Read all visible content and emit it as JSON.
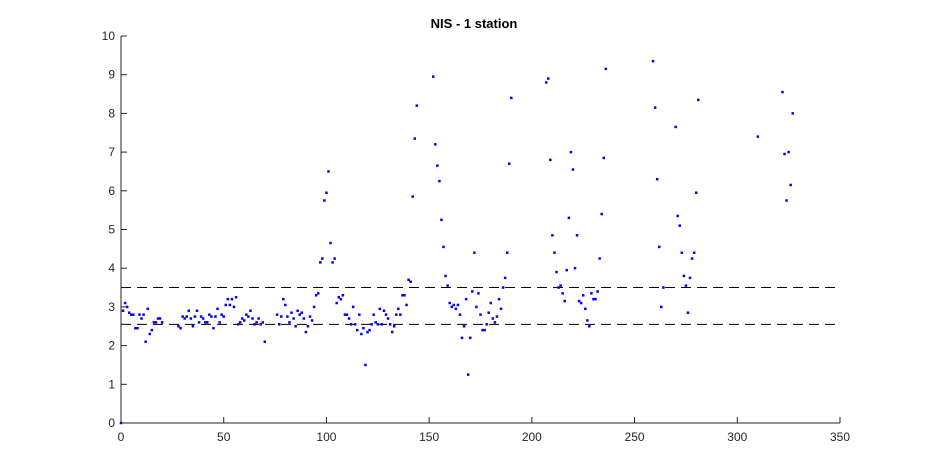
{
  "chart_data": {
    "type": "scatter",
    "title": "NIS - 1 station",
    "xlabel": "",
    "ylabel": "",
    "xlim": [
      0,
      350
    ],
    "ylim": [
      0,
      10
    ],
    "xticks": [
      0,
      50,
      100,
      150,
      200,
      250,
      300,
      350
    ],
    "yticks": [
      0,
      1,
      2,
      3,
      4,
      5,
      6,
      7,
      8,
      9,
      10
    ],
    "grid": false,
    "legend": "none",
    "marker_color": "#0000ff",
    "reference_lines": [
      {
        "y": 2.55,
        "style": "dashed",
        "color": "#000000"
      },
      {
        "y": 3.5,
        "style": "dashed",
        "color": "#000000"
      }
    ],
    "series": [
      {
        "points": [
          [
            0,
            0.0
          ],
          [
            1,
            2.9
          ],
          [
            2,
            3.1
          ],
          [
            3,
            3.0
          ],
          [
            4,
            2.85
          ],
          [
            5,
            2.8
          ],
          [
            6,
            2.8
          ],
          [
            7,
            2.45
          ],
          [
            8,
            2.45
          ],
          [
            9,
            2.8
          ],
          [
            10,
            2.7
          ],
          [
            11,
            2.8
          ],
          [
            12,
            2.1
          ],
          [
            13,
            2.95
          ],
          [
            14,
            2.3
          ],
          [
            15,
            2.4
          ],
          [
            16,
            2.6
          ],
          [
            17,
            2.6
          ],
          [
            18,
            2.7
          ],
          [
            19,
            2.7
          ],
          [
            20,
            2.6
          ],
          [
            28,
            2.5
          ],
          [
            29,
            2.45
          ],
          [
            30,
            2.75
          ],
          [
            31,
            2.7
          ],
          [
            32,
            2.75
          ],
          [
            33,
            2.9
          ],
          [
            34,
            2.7
          ],
          [
            35,
            2.5
          ],
          [
            36,
            2.75
          ],
          [
            37,
            2.9
          ],
          [
            38,
            2.6
          ],
          [
            39,
            2.75
          ],
          [
            40,
            2.7
          ],
          [
            41,
            2.6
          ],
          [
            42,
            2.6
          ],
          [
            43,
            2.8
          ],
          [
            44,
            2.75
          ],
          [
            45,
            2.45
          ],
          [
            46,
            2.75
          ],
          [
            47,
            2.95
          ],
          [
            48,
            2.6
          ],
          [
            49,
            2.8
          ],
          [
            50,
            2.75
          ],
          [
            51,
            3.05
          ],
          [
            52,
            3.2
          ],
          [
            53,
            3.05
          ],
          [
            54,
            3.2
          ],
          [
            55,
            3.0
          ],
          [
            56,
            3.25
          ],
          [
            57,
            2.55
          ],
          [
            58,
            2.6
          ],
          [
            59,
            2.7
          ],
          [
            60,
            2.65
          ],
          [
            61,
            2.8
          ],
          [
            62,
            2.75
          ],
          [
            63,
            2.9
          ],
          [
            64,
            2.7
          ],
          [
            65,
            2.55
          ],
          [
            66,
            2.6
          ],
          [
            67,
            2.7
          ],
          [
            68,
            2.55
          ],
          [
            69,
            2.6
          ],
          [
            70,
            2.1
          ],
          [
            76,
            2.8
          ],
          [
            77,
            2.55
          ],
          [
            78,
            2.75
          ],
          [
            79,
            3.2
          ],
          [
            80,
            3.05
          ],
          [
            81,
            2.75
          ],
          [
            82,
            2.6
          ],
          [
            83,
            2.85
          ],
          [
            84,
            2.7
          ],
          [
            85,
            2.5
          ],
          [
            86,
            2.9
          ],
          [
            87,
            2.8
          ],
          [
            88,
            2.85
          ],
          [
            89,
            2.7
          ],
          [
            90,
            2.35
          ],
          [
            91,
            2.5
          ],
          [
            92,
            2.75
          ],
          [
            93,
            2.65
          ],
          [
            94,
            3.0
          ],
          [
            95,
            3.3
          ],
          [
            96,
            3.35
          ],
          [
            97,
            4.15
          ],
          [
            98,
            4.25
          ],
          [
            99,
            5.75
          ],
          [
            100,
            5.95
          ],
          [
            101,
            6.5
          ],
          [
            102,
            4.65
          ],
          [
            103,
            4.15
          ],
          [
            104,
            4.25
          ],
          [
            105,
            3.1
          ],
          [
            106,
            3.25
          ],
          [
            107,
            3.2
          ],
          [
            108,
            3.3
          ],
          [
            109,
            2.8
          ],
          [
            110,
            2.8
          ],
          [
            111,
            2.7
          ],
          [
            112,
            2.55
          ],
          [
            113,
            3.0
          ],
          [
            114,
            2.55
          ],
          [
            115,
            2.4
          ],
          [
            116,
            2.8
          ],
          [
            117,
            2.3
          ],
          [
            118,
            2.45
          ],
          [
            119,
            1.5
          ],
          [
            120,
            2.35
          ],
          [
            121,
            2.4
          ],
          [
            122,
            2.55
          ],
          [
            123,
            2.8
          ],
          [
            124,
            2.6
          ],
          [
            125,
            2.55
          ],
          [
            126,
            2.95
          ],
          [
            127,
            2.55
          ],
          [
            128,
            2.9
          ],
          [
            129,
            2.8
          ],
          [
            130,
            2.7
          ],
          [
            131,
            2.55
          ],
          [
            132,
            2.35
          ],
          [
            133,
            2.5
          ],
          [
            134,
            2.8
          ],
          [
            135,
            2.95
          ],
          [
            136,
            2.8
          ],
          [
            137,
            3.3
          ],
          [
            138,
            3.3
          ],
          [
            139,
            3.05
          ],
          [
            140,
            3.7
          ],
          [
            141,
            3.65
          ],
          [
            142,
            5.85
          ],
          [
            143,
            7.35
          ],
          [
            144,
            8.2
          ],
          [
            152,
            8.95
          ],
          [
            153,
            7.2
          ],
          [
            154,
            6.65
          ],
          [
            155,
            6.25
          ],
          [
            156,
            5.25
          ],
          [
            157,
            4.55
          ],
          [
            158,
            3.8
          ],
          [
            159,
            3.55
          ],
          [
            160,
            3.1
          ],
          [
            161,
            3.0
          ],
          [
            162,
            3.05
          ],
          [
            163,
            2.95
          ],
          [
            164,
            3.05
          ],
          [
            165,
            2.8
          ],
          [
            166,
            2.2
          ],
          [
            167,
            2.5
          ],
          [
            168,
            3.2
          ],
          [
            169,
            1.25
          ],
          [
            170,
            2.2
          ],
          [
            171,
            3.4
          ],
          [
            172,
            4.4
          ],
          [
            173,
            3.0
          ],
          [
            174,
            3.35
          ],
          [
            175,
            2.8
          ],
          [
            176,
            2.4
          ],
          [
            177,
            2.4
          ],
          [
            178,
            2.55
          ],
          [
            179,
            2.85
          ],
          [
            180,
            3.1
          ],
          [
            181,
            2.7
          ],
          [
            182,
            2.6
          ],
          [
            183,
            2.75
          ],
          [
            184,
            3.2
          ],
          [
            185,
            2.95
          ],
          [
            186,
            3.5
          ],
          [
            187,
            3.75
          ],
          [
            188,
            4.4
          ],
          [
            189,
            6.7
          ],
          [
            190,
            8.4
          ],
          [
            207,
            8.8
          ],
          [
            208,
            8.9
          ],
          [
            209,
            6.8
          ],
          [
            210,
            4.85
          ],
          [
            211,
            4.4
          ],
          [
            212,
            3.9
          ],
          [
            213,
            3.5
          ],
          [
            214,
            3.55
          ],
          [
            215,
            3.35
          ],
          [
            216,
            3.15
          ],
          [
            217,
            3.95
          ],
          [
            218,
            5.3
          ],
          [
            219,
            7.0
          ],
          [
            220,
            6.55
          ],
          [
            221,
            4.0
          ],
          [
            222,
            4.85
          ],
          [
            223,
            3.15
          ],
          [
            224,
            3.1
          ],
          [
            225,
            3.3
          ],
          [
            226,
            2.95
          ],
          [
            227,
            2.65
          ],
          [
            228,
            2.5
          ],
          [
            229,
            3.35
          ],
          [
            230,
            3.2
          ],
          [
            231,
            3.2
          ],
          [
            232,
            3.4
          ],
          [
            233,
            4.25
          ],
          [
            234,
            5.4
          ],
          [
            235,
            6.85
          ],
          [
            236,
            9.15
          ],
          [
            259,
            9.35
          ],
          [
            260,
            8.15
          ],
          [
            261,
            6.3
          ],
          [
            262,
            4.55
          ],
          [
            263,
            3.0
          ],
          [
            264,
            3.5
          ],
          [
            270,
            7.65
          ],
          [
            271,
            5.35
          ],
          [
            272,
            5.1
          ],
          [
            273,
            4.4
          ],
          [
            274,
            3.8
          ],
          [
            275,
            3.55
          ],
          [
            276,
            2.85
          ],
          [
            277,
            3.75
          ],
          [
            278,
            4.25
          ],
          [
            279,
            4.4
          ],
          [
            280,
            5.95
          ],
          [
            281,
            8.35
          ],
          [
            310,
            7.4
          ],
          [
            322,
            8.55
          ],
          [
            323,
            6.95
          ],
          [
            324,
            5.75
          ],
          [
            325,
            7.0
          ],
          [
            326,
            6.15
          ],
          [
            327,
            8.0
          ]
        ]
      }
    ]
  }
}
